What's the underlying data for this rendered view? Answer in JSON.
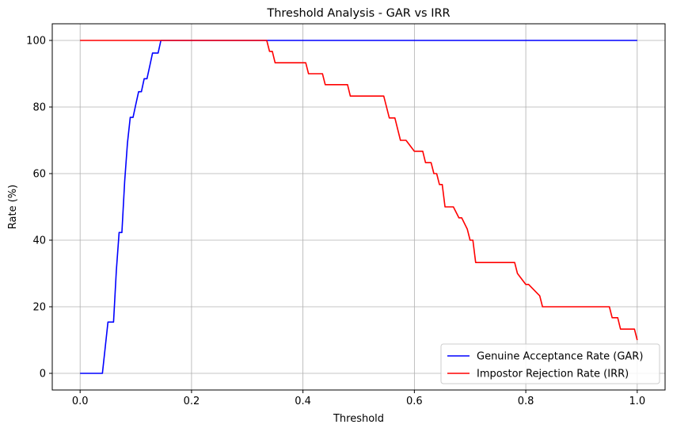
{
  "chart_data": {
    "type": "line",
    "title": "Threshold Analysis - GAR vs IRR",
    "xlabel": "Threshold",
    "ylabel": "Rate (%)",
    "xlim": [
      -0.05,
      1.05
    ],
    "ylim": [
      -5,
      105
    ],
    "xticks": [
      0.0,
      0.2,
      0.4,
      0.6,
      0.8,
      1.0
    ],
    "xtick_labels": [
      "0.0",
      "0.2",
      "0.4",
      "0.6",
      "0.8",
      "1.0"
    ],
    "yticks": [
      0,
      20,
      40,
      60,
      80,
      100
    ],
    "ytick_labels": [
      "0",
      "20",
      "40",
      "60",
      "80",
      "100"
    ],
    "grid": true,
    "legend_position": "bottom-right",
    "series": [
      {
        "name": "Genuine Acceptance Rate (GAR)",
        "color": "#0000ff",
        "x": [
          0.0,
          0.04,
          0.045,
          0.05,
          0.06,
          0.065,
          0.07,
          0.075,
          0.08,
          0.085,
          0.09,
          0.095,
          0.1,
          0.105,
          0.11,
          0.115,
          0.12,
          0.125,
          0.13,
          0.135,
          0.14,
          0.145,
          0.15,
          1.0
        ],
        "y": [
          0,
          0,
          7.7,
          15.4,
          15.4,
          30.8,
          42.3,
          42.3,
          57.7,
          69.2,
          76.9,
          76.9,
          80.8,
          84.6,
          84.6,
          88.5,
          88.5,
          92.3,
          96.2,
          96.2,
          96.2,
          100,
          100,
          100
        ]
      },
      {
        "name": "Impostor Rejection Rate (IRR)",
        "color": "#ff0000",
        "x": [
          0.0,
          0.335,
          0.34,
          0.345,
          0.35,
          0.405,
          0.41,
          0.435,
          0.44,
          0.48,
          0.485,
          0.545,
          0.555,
          0.565,
          0.575,
          0.585,
          0.6,
          0.615,
          0.62,
          0.63,
          0.635,
          0.64,
          0.645,
          0.65,
          0.655,
          0.665,
          0.67,
          0.68,
          0.685,
          0.695,
          0.7,
          0.705,
          0.71,
          0.78,
          0.785,
          0.8,
          0.805,
          0.825,
          0.83,
          0.95,
          0.955,
          0.965,
          0.97,
          0.995,
          1.0
        ],
        "y": [
          100,
          100,
          96.7,
          96.7,
          93.3,
          93.3,
          90.0,
          90.0,
          86.7,
          86.7,
          83.3,
          83.3,
          76.7,
          76.7,
          70.0,
          70.0,
          66.7,
          66.7,
          63.3,
          63.3,
          60.0,
          60.0,
          56.7,
          56.7,
          50.0,
          50.0,
          50.0,
          46.7,
          46.7,
          43.3,
          40.0,
          40.0,
          33.3,
          33.3,
          30.0,
          26.7,
          26.7,
          23.3,
          20.0,
          20.0,
          16.7,
          16.7,
          13.3,
          13.3,
          10.0
        ]
      }
    ]
  }
}
